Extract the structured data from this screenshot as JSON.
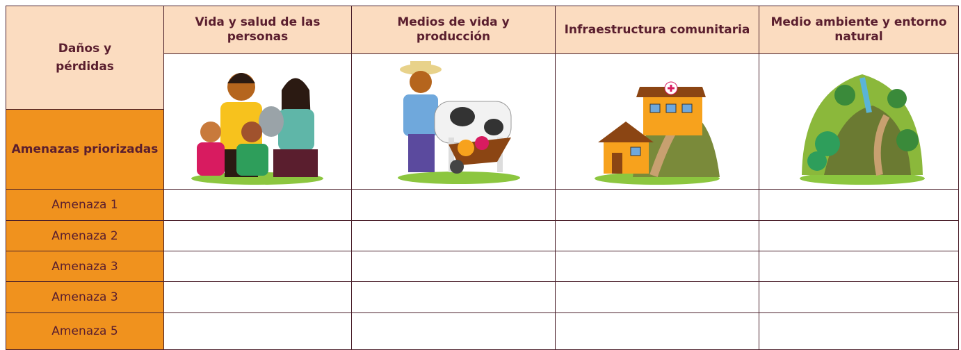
{
  "table": {
    "corner_top": "Daños y pérdidas",
    "corner_bottom": "Amenazas priorizadas",
    "columns": [
      "Vida y salud de las personas",
      "Medios de vida y producción",
      "Infraestructura comunitaria",
      "Medio ambiente y entorno natural"
    ],
    "rows": [
      "Amenaza 1",
      "Amenaza 2",
      "Amenaza 3",
      "Amenaza 3",
      "Amenaza 5"
    ]
  }
}
